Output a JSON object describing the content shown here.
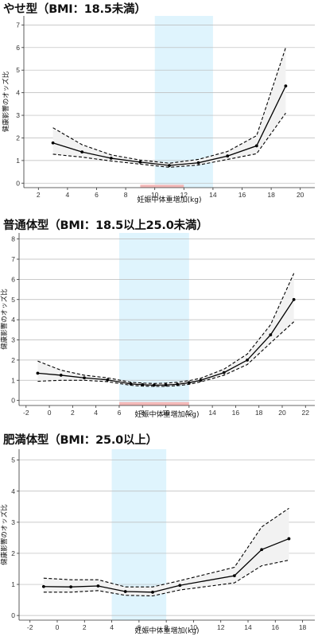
{
  "chart_data": [
    {
      "type": "line",
      "title": "やせ型（BMI：18.5未満）",
      "xlabel": "妊娠中体重増加(kg)",
      "ylabel": "健康影響のオッズ比",
      "xlim": [
        1,
        21
      ],
      "ylim": [
        -0.2,
        7.4
      ],
      "xticks": [
        2,
        4,
        6,
        8,
        10,
        12,
        14,
        16,
        18,
        20
      ],
      "yticks": [
        0,
        1,
        2,
        3,
        4,
        5,
        6,
        7
      ],
      "highlight_x": [
        10,
        14
      ],
      "highlight_baseline": [
        9,
        12
      ],
      "grid": true,
      "x": [
        3,
        5,
        7,
        9,
        11,
        13,
        15,
        17,
        19
      ],
      "series": [
        {
          "role": "estimate",
          "values": [
            1.78,
            1.38,
            1.1,
            0.93,
            0.78,
            0.9,
            1.2,
            1.65,
            4.3
          ]
        },
        {
          "role": "upper",
          "values": [
            2.45,
            1.7,
            1.25,
            1.02,
            0.88,
            1.05,
            1.4,
            2.1,
            6.0
          ]
        },
        {
          "role": "lower",
          "values": [
            1.28,
            1.15,
            0.98,
            0.84,
            0.7,
            0.8,
            1.05,
            1.3,
            3.1
          ]
        }
      ]
    },
    {
      "type": "line",
      "title": "普通体型（BMI：18.5以上25.0未満）",
      "xlabel": "妊娠中体重増加(kg)",
      "ylabel": "健康影響のオッズ比",
      "xlim": [
        -2.6,
        22.8
      ],
      "ylim": [
        -0.25,
        8.3
      ],
      "xticks": [
        -2,
        0,
        2,
        4,
        6,
        8,
        10,
        12,
        14,
        16,
        18,
        20,
        22
      ],
      "yticks": [
        0,
        1,
        2,
        3,
        4,
        5,
        6,
        7,
        8
      ],
      "highlight_x": [
        6,
        12
      ],
      "highlight_baseline": [
        6,
        12
      ],
      "grid": true,
      "x": [
        -1,
        1,
        3,
        5,
        7,
        8,
        9,
        10,
        11,
        12,
        13,
        15,
        17,
        19,
        21
      ],
      "series": [
        {
          "role": "estimate",
          "values": [
            1.35,
            1.25,
            1.12,
            1.02,
            0.82,
            0.78,
            0.76,
            0.77,
            0.8,
            0.88,
            1.0,
            1.38,
            2.0,
            3.25,
            5.0
          ]
        },
        {
          "role": "upper",
          "values": [
            1.95,
            1.5,
            1.25,
            1.12,
            0.9,
            0.86,
            0.84,
            0.86,
            0.9,
            0.98,
            1.1,
            1.55,
            2.3,
            3.75,
            6.3
          ]
        },
        {
          "role": "lower",
          "values": [
            0.95,
            1.0,
            1.0,
            0.93,
            0.75,
            0.71,
            0.7,
            0.7,
            0.73,
            0.8,
            0.92,
            1.25,
            1.78,
            2.85,
            3.9
          ]
        }
      ]
    },
    {
      "type": "line",
      "title": "肥満体型（BMI：25.0以上）",
      "xlabel": "妊娠中体重増加(kg)",
      "ylabel": "健康影響のオッズ比",
      "xlim": [
        -2.8,
        18.9
      ],
      "ylim": [
        -0.15,
        5.35
      ],
      "xticks": [
        -2,
        0,
        2,
        4,
        6,
        8,
        10,
        12,
        14,
        16,
        18
      ],
      "yticks": [
        0,
        1,
        2,
        3,
        4,
        5
      ],
      "highlight_x": [
        4,
        8
      ],
      "grid": true,
      "x": [
        -1,
        1,
        3,
        5,
        7,
        9,
        13,
        15,
        17
      ],
      "series": [
        {
          "role": "estimate",
          "values": [
            0.93,
            0.92,
            0.95,
            0.77,
            0.75,
            0.97,
            1.28,
            2.12,
            2.47
          ]
        },
        {
          "role": "upper",
          "values": [
            1.2,
            1.15,
            1.15,
            0.92,
            0.92,
            1.12,
            1.55,
            2.85,
            3.45
          ]
        },
        {
          "role": "lower",
          "values": [
            0.75,
            0.75,
            0.8,
            0.65,
            0.63,
            0.82,
            1.05,
            1.6,
            1.78
          ]
        }
      ]
    }
  ],
  "colors": {
    "highlight": "#dff4fd",
    "baseline_bar": "#f4b9b9",
    "ci_fill": "#f2f2f2",
    "grid": "#b8b8b8",
    "line": "#000000"
  }
}
